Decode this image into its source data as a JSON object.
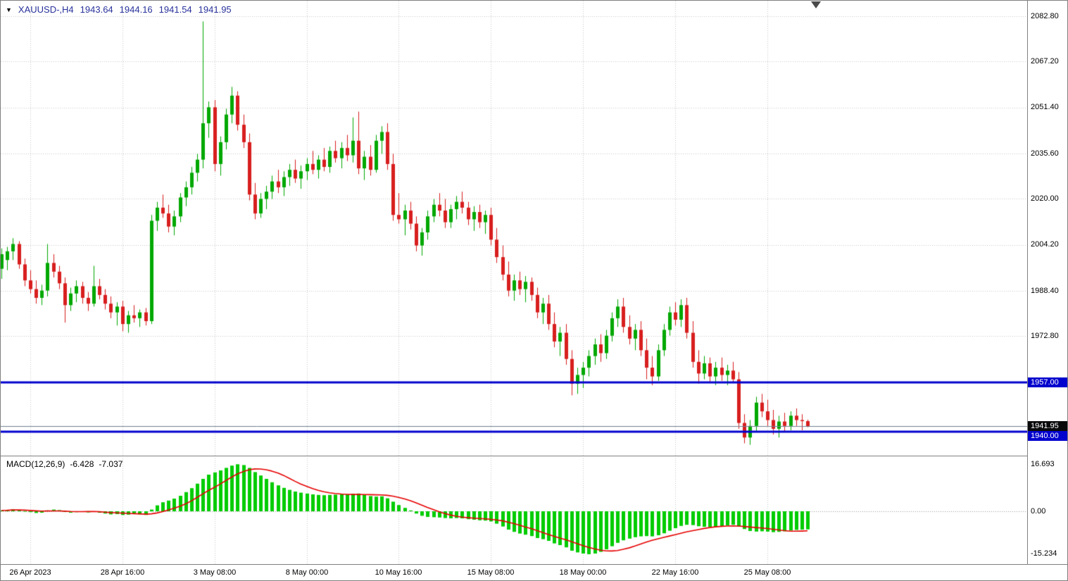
{
  "header": {
    "menu_icon": "▼",
    "symbol_period": "XAUUSD-,H4",
    "open": "1943.64",
    "high": "1944.16",
    "low": "1941.54",
    "close": "1941.95"
  },
  "macd_panel": {
    "title": "MACD(12,26,9)",
    "main_value": "-6.428",
    "signal_value": "-7.037"
  },
  "colors": {
    "bull": "#00A800",
    "bear": "#D81E1E",
    "histogram": "#00CC00",
    "signal_line": "#E60000",
    "level_line": "#0202CE",
    "bid_line": "#708090",
    "grid": "#C8C8C8",
    "axis_text": "#000000",
    "header_text": "#28329B",
    "badge_level_bg": "#0202CE",
    "badge_bid_bg": "#0A0A0A",
    "badge_text": "#FFFFFF"
  },
  "chart_data": {
    "type": "candlestick",
    "symbol": "XAUUSD",
    "timeframe": "H4",
    "title": "XAUUSD-,H4",
    "grid": "dotted",
    "ylim": [
      1932,
      2088
    ],
    "price_axis": {
      "values": [
        2082.8,
        2067.2,
        2051.4,
        2035.6,
        2020.0,
        2004.2,
        1988.4,
        1972.8
      ],
      "labels": [
        "2082.80",
        "2067.20",
        "2051.40",
        "2035.60",
        "2020.00",
        "2004.20",
        "1988.40",
        "1972.80"
      ]
    },
    "time_axis": {
      "bars": [
        5,
        21,
        37,
        53,
        69,
        85,
        101,
        117,
        133
      ],
      "labels": [
        "26 Apr 2023",
        "28 Apr 16:00",
        "3 May 08:00",
        "8 May 00:00",
        "10 May 16:00",
        "15 May 08:00",
        "18 May 00:00",
        "22 May 16:00",
        "25 May 08:00"
      ]
    },
    "levels": [
      {
        "value": 1957.0,
        "label": "1957.00"
      },
      {
        "value": 1940.0,
        "label": "1940.00"
      }
    ],
    "bid": {
      "value": 1941.95,
      "label": "1941.95"
    },
    "candles_ohlc": [
      [
        1996,
        2003,
        1992.5,
        2001
      ],
      [
        1999,
        2003.5,
        1995.5,
        2002
      ],
      [
        2002,
        2006.5,
        1999,
        2004.5
      ],
      [
        2004.5,
        2005.5,
        1996,
        1997.5
      ],
      [
        1997.5,
        1999.5,
        1990,
        1992
      ],
      [
        1992,
        1995.5,
        1987.5,
        1989
      ],
      [
        1989,
        1992,
        1984,
        1986
      ],
      [
        1986,
        1990.5,
        1983.5,
        1988.5
      ],
      [
        1988.5,
        2004.5,
        1986.5,
        1998
      ],
      [
        1998,
        2001,
        1993,
        1995
      ],
      [
        1995,
        1997,
        1989,
        1991
      ],
      [
        1991,
        1993,
        1977.5,
        1983.5
      ],
      [
        1983.5,
        1989.5,
        1981.5,
        1987.5
      ],
      [
        1987.5,
        1992,
        1984.5,
        1990
      ],
      [
        1990,
        1991.5,
        1984,
        1986
      ],
      [
        1986,
        1988,
        1981.5,
        1984
      ],
      [
        1984,
        1997,
        1983,
        1990
      ],
      [
        1990,
        1992.5,
        1985.5,
        1987
      ],
      [
        1987,
        1989,
        1982,
        1984
      ],
      [
        1984,
        1986.5,
        1979,
        1981
      ],
      [
        1981,
        1984.5,
        1976.5,
        1983
      ],
      [
        1983,
        1985,
        1974.5,
        1977
      ],
      [
        1977,
        1981.5,
        1974,
        1980
      ],
      [
        1980,
        1983.5,
        1977.5,
        1979
      ],
      [
        1979,
        1982,
        1976,
        1981
      ],
      [
        1981,
        1982.5,
        1976.5,
        1978
      ],
      [
        1978,
        2014.5,
        1977,
        2012.5
      ],
      [
        2012.5,
        2019,
        2009,
        2017
      ],
      [
        2017,
        2021.5,
        2013.5,
        2015
      ],
      [
        2015,
        2018,
        2008.5,
        2010.5
      ],
      [
        2010.5,
        2016,
        2007.5,
        2014
      ],
      [
        2014,
        2022,
        2012,
        2020.5
      ],
      [
        2020.5,
        2026,
        2017.5,
        2024
      ],
      [
        2024,
        2031,
        2021.5,
        2029
      ],
      [
        2029,
        2035.5,
        2026,
        2033.5
      ],
      [
        2033.5,
        2081,
        2030.5,
        2046
      ],
      [
        2046,
        2053.5,
        2041,
        2051.5
      ],
      [
        2051.5,
        2054,
        2029.5,
        2032
      ],
      [
        2032,
        2041.5,
        2028,
        2039.5
      ],
      [
        2039.5,
        2051,
        2037,
        2049
      ],
      [
        2049,
        2058.5,
        2046,
        2055.5
      ],
      [
        2055.5,
        2057,
        2043.5,
        2045.5
      ],
      [
        2045.5,
        2049,
        2037.5,
        2039.5
      ],
      [
        2039.5,
        2042.5,
        2019.5,
        2021.5
      ],
      [
        2021.5,
        2025.5,
        2013,
        2015
      ],
      [
        2015,
        2022,
        2013.5,
        2020
      ],
      [
        2020,
        2024.5,
        2016.5,
        2022.5
      ],
      [
        2022.5,
        2028,
        2020,
        2026
      ],
      [
        2026,
        2030,
        2022,
        2024
      ],
      [
        2024,
        2029.5,
        2021,
        2027.5
      ],
      [
        2027.5,
        2032,
        2024.5,
        2030
      ],
      [
        2030,
        2033.5,
        2025.5,
        2027
      ],
      [
        2027,
        2031.5,
        2023.5,
        2029.5
      ],
      [
        2029.5,
        2034,
        2026.5,
        2032
      ],
      [
        2032,
        2036.5,
        2028.5,
        2030
      ],
      [
        2030,
        2035,
        2027,
        2033.5
      ],
      [
        2033.5,
        2037.5,
        2029.5,
        2031
      ],
      [
        2031,
        2038,
        2029,
        2036.5
      ],
      [
        2036.5,
        2040,
        2032.5,
        2034
      ],
      [
        2034,
        2039.5,
        2030.5,
        2037.5
      ],
      [
        2037.5,
        2042,
        2033,
        2035
      ],
      [
        2035,
        2048,
        2032.5,
        2040
      ],
      [
        2040,
        2050,
        2028.5,
        2030.5
      ],
      [
        2030.5,
        2036.5,
        2026.5,
        2034.5
      ],
      [
        2034.5,
        2038.5,
        2028,
        2030
      ],
      [
        2030,
        2042,
        2029,
        2040
      ],
      [
        2040,
        2045,
        2035.5,
        2043
      ],
      [
        2043,
        2046,
        2030,
        2032
      ],
      [
        2032,
        2035.5,
        2012.5,
        2014.5
      ],
      [
        2014.5,
        2022,
        2011.5,
        2013
      ],
      [
        2013,
        2018,
        2007.5,
        2016
      ],
      [
        2016,
        2019,
        2009.5,
        2011.5
      ],
      [
        2011.5,
        2014,
        2002,
        2004
      ],
      [
        2004,
        2010,
        2000.5,
        2008.5
      ],
      [
        2008.5,
        2016,
        2006,
        2014
      ],
      [
        2014,
        2020,
        2012,
        2018
      ],
      [
        2018,
        2022,
        2014,
        2016
      ],
      [
        2016,
        2020,
        2010,
        2012
      ],
      [
        2012,
        2018,
        2010,
        2016.5
      ],
      [
        2016.5,
        2021,
        2013,
        2019
      ],
      [
        2019,
        2022.5,
        2015,
        2017
      ],
      [
        2017,
        2019,
        2011,
        2013
      ],
      [
        2013,
        2017.5,
        2009,
        2015.5
      ],
      [
        2015.5,
        2018,
        2010,
        2012
      ],
      [
        2012,
        2016,
        2008,
        2014.5
      ],
      [
        2014.5,
        2017,
        2004,
        2006
      ],
      [
        2006,
        2010,
        1998,
        2000
      ],
      [
        2000,
        2004,
        1992,
        1994
      ],
      [
        1994,
        1998.5,
        1986.5,
        1988.5
      ],
      [
        1988.5,
        1994,
        1985,
        1992
      ],
      [
        1992,
        1995,
        1987,
        1989
      ],
      [
        1989,
        1993.5,
        1984.5,
        1991.5
      ],
      [
        1991.5,
        1993,
        1985,
        1987
      ],
      [
        1987,
        1989.5,
        1979,
        1981
      ],
      [
        1981,
        1986,
        1977,
        1984
      ],
      [
        1984,
        1987,
        1975,
        1977
      ],
      [
        1977,
        1981,
        1969,
        1971
      ],
      [
        1971,
        1976,
        1966,
        1974
      ],
      [
        1974,
        1977,
        1963,
        1965
      ],
      [
        1965,
        1968,
        1952.5,
        1956.5
      ],
      [
        1956.5,
        1962,
        1953,
        1959.5
      ],
      [
        1959.5,
        1964,
        1955,
        1962
      ],
      [
        1962,
        1968,
        1959,
        1966
      ],
      [
        1966,
        1972,
        1963,
        1970
      ],
      [
        1970,
        1973.5,
        1964,
        1967
      ],
      [
        1967,
        1975,
        1965,
        1973
      ],
      [
        1973,
        1981,
        1971,
        1979
      ],
      [
        1979,
        1985.5,
        1976,
        1983
      ],
      [
        1983,
        1986,
        1974,
        1976
      ],
      [
        1976,
        1980,
        1970,
        1972
      ],
      [
        1972,
        1977,
        1968,
        1975
      ],
      [
        1975,
        1978,
        1966,
        1968
      ],
      [
        1968,
        1972,
        1958,
        1962
      ],
      [
        1962,
        1966,
        1956,
        1959
      ],
      [
        1959,
        1970,
        1957.5,
        1968
      ],
      [
        1968,
        1977,
        1966,
        1975
      ],
      [
        1975,
        1983,
        1973,
        1981
      ],
      [
        1981,
        1984.5,
        1976.5,
        1978.5
      ],
      [
        1978.5,
        1985.5,
        1976,
        1983.5
      ],
      [
        1983.5,
        1986,
        1972,
        1974
      ],
      [
        1974,
        1978,
        1962,
        1964
      ],
      [
        1964,
        1968,
        1956.5,
        1960
      ],
      [
        1960,
        1966,
        1958,
        1963.5
      ],
      [
        1963.5,
        1965.5,
        1957,
        1959
      ],
      [
        1959,
        1964,
        1956,
        1962
      ],
      [
        1962,
        1965.5,
        1957.5,
        1959.5
      ],
      [
        1959.5,
        1963,
        1956,
        1961
      ],
      [
        1961,
        1964,
        1957,
        1958
      ],
      [
        1958,
        1960.5,
        1941,
        1943
      ],
      [
        1943,
        1946,
        1936,
        1938
      ],
      [
        1938,
        1944,
        1935.5,
        1942
      ],
      [
        1942,
        1952,
        1940,
        1950
      ],
      [
        1950,
        1953,
        1945,
        1947
      ],
      [
        1947,
        1951,
        1942,
        1944
      ],
      [
        1944,
        1947.5,
        1939,
        1941
      ],
      [
        1941,
        1945.5,
        1938,
        1943.5
      ],
      [
        1943.5,
        1946.5,
        1940,
        1942
      ],
      [
        1942,
        1947,
        1940.5,
        1945.5
      ],
      [
        1945.5,
        1948,
        1942,
        1944
      ],
      [
        1944,
        1946,
        1940.5,
        1943.64
      ],
      [
        1943.64,
        1944.16,
        1941.54,
        1941.95
      ]
    ],
    "indicator": {
      "name": "MACD",
      "params": [
        12,
        26,
        9
      ],
      "ylim": [
        -15.234,
        16.693
      ],
      "axis": {
        "values": [
          16.693,
          0,
          -15.234
        ],
        "labels": [
          "16.693",
          "0.00",
          "-15.234"
        ]
      },
      "display_values": {
        "main": "-6.428",
        "signal": "-7.037"
      },
      "signal_method": "SMA(9) of histogram",
      "histogram": [
        0.3,
        0.4,
        0.7,
        0.5,
        0.1,
        -0.3,
        -0.6,
        -0.5,
        0.3,
        0.6,
        0.4,
        -0.2,
        -0.5,
        -0.3,
        -0.2,
        -0.4,
        -0.2,
        -0.5,
        -0.8,
        -1.1,
        -1.0,
        -1.3,
        -1.2,
        -1.0,
        -1.1,
        -1.3,
        0.6,
        2.1,
        3.2,
        3.8,
        4.5,
        5.5,
        6.8,
        8.2,
        9.8,
        11.5,
        13.0,
        13.8,
        14.5,
        15.4,
        16.2,
        16.693,
        16.4,
        15.4,
        13.9,
        12.7,
        11.5,
        10.3,
        9.2,
        8.3,
        7.6,
        7.0,
        6.6,
        6.3,
        6.0,
        5.8,
        5.7,
        5.8,
        5.9,
        6.0,
        6.0,
        6.2,
        6.3,
        5.9,
        5.4,
        5.2,
        5.3,
        4.6,
        3.4,
        2.2,
        1.2,
        0.3,
        -0.8,
        -1.6,
        -2.0,
        -2.1,
        -2.2,
        -2.4,
        -2.5,
        -2.4,
        -2.5,
        -2.8,
        -3.0,
        -3.2,
        -3.3,
        -3.6,
        -4.4,
        -5.4,
        -6.5,
        -7.3,
        -7.9,
        -8.3,
        -8.8,
        -9.5,
        -9.9,
        -10.5,
        -11.4,
        -12.0,
        -12.8,
        -14.0,
        -14.6,
        -15.0,
        -15.234,
        -15.0,
        -14.4,
        -13.5,
        -12.4,
        -11.2,
        -10.3,
        -9.7,
        -9.2,
        -8.9,
        -8.8,
        -8.9,
        -8.5,
        -7.8,
        -6.9,
        -6.0,
        -5.2,
        -4.8,
        -4.9,
        -5.3,
        -5.5,
        -5.6,
        -5.5,
        -5.3,
        -5.0,
        -4.8,
        -5.4,
        -6.3,
        -7.0,
        -7.2,
        -7.1,
        -7.2,
        -7.4,
        -7.3,
        -7.1,
        -6.8,
        -6.6,
        -6.5,
        -6.428
      ]
    }
  }
}
